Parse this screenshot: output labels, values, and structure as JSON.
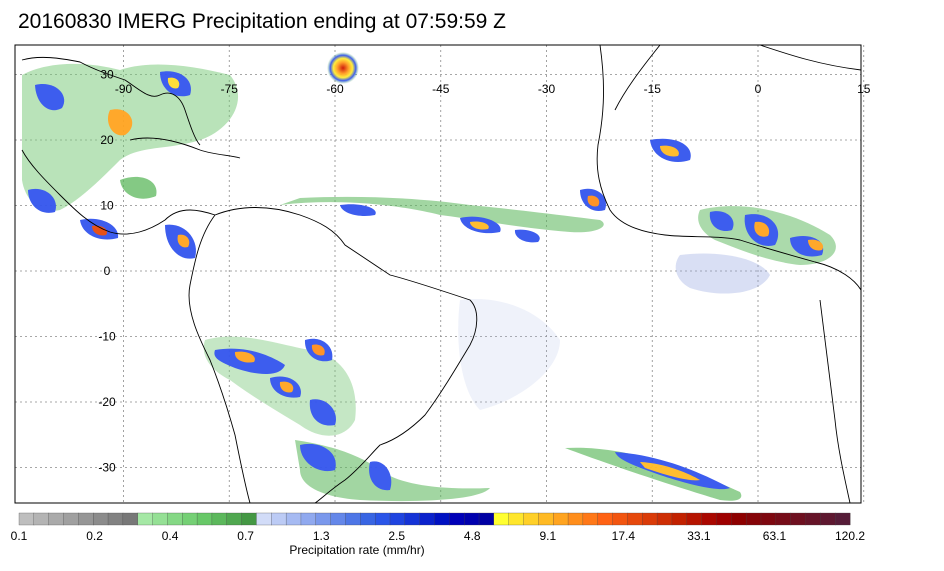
{
  "title": "20160830 IMERG Precipitation ending at 07:59:59 Z",
  "map": {
    "lon_range": [
      -100,
      20
    ],
    "lat_range": [
      -36,
      36
    ],
    "grid": true,
    "lon_ticks": [
      {
        "value": -90,
        "label": "-90"
      },
      {
        "value": -75,
        "label": "-75"
      },
      {
        "value": -60,
        "label": "-60"
      },
      {
        "value": -45,
        "label": "-45"
      },
      {
        "value": -30,
        "label": "-30"
      },
      {
        "value": -15,
        "label": "-15"
      },
      {
        "value": 0,
        "label": "0"
      },
      {
        "value": 15,
        "label": "15"
      }
    ],
    "lat_ticks": [
      {
        "value": 30,
        "label": "30"
      },
      {
        "value": 20,
        "label": "20"
      },
      {
        "value": 10,
        "label": "10"
      },
      {
        "value": 0,
        "label": "0"
      },
      {
        "value": -10,
        "label": "-10"
      },
      {
        "value": -20,
        "label": "-20"
      },
      {
        "value": -30,
        "label": "-30"
      }
    ],
    "coast_color": "#000000",
    "grid_color": "#8a8a8a"
  },
  "colorbar": {
    "label": "Precipitation rate (mm/hr)",
    "tick_labels": [
      "0.1",
      "0.2",
      "0.4",
      "0.7",
      "1.3",
      "2.5",
      "4.8",
      "9.1",
      "17.4",
      "33.1",
      "63.1",
      "120.2"
    ],
    "colors": [
      "#bebebe",
      "#b4b4b4",
      "#aaaaaa",
      "#a0a0a0",
      "#969696",
      "#8c8c8c",
      "#828282",
      "#787878",
      "#a5e8a5",
      "#95e095",
      "#85d885",
      "#75d075",
      "#68c868",
      "#5cb85c",
      "#50a850",
      "#449844",
      "#d2dcf8",
      "#bccbf5",
      "#a6baf2",
      "#90a9ef",
      "#7a98ec",
      "#6487e9",
      "#4e76e6",
      "#3865e3",
      "#2a55e8",
      "#1f44e0",
      "#1533d6",
      "#0b22cc",
      "#0011c2",
      "#0000b8",
      "#0000ae",
      "#0000a4",
      "#ffff30",
      "#ffe62c",
      "#ffd028",
      "#ffba24",
      "#ffa420",
      "#ff8e1c",
      "#ff7818",
      "#ff6214",
      "#f25510",
      "#e6480c",
      "#da3b08",
      "#ce2e04",
      "#c22100",
      "#b61400",
      "#aa0700",
      "#9e0000",
      "#8e0000",
      "#860408",
      "#7e0810",
      "#760c18",
      "#6e1020",
      "#661428",
      "#5e1830",
      "#561c38"
    ]
  }
}
